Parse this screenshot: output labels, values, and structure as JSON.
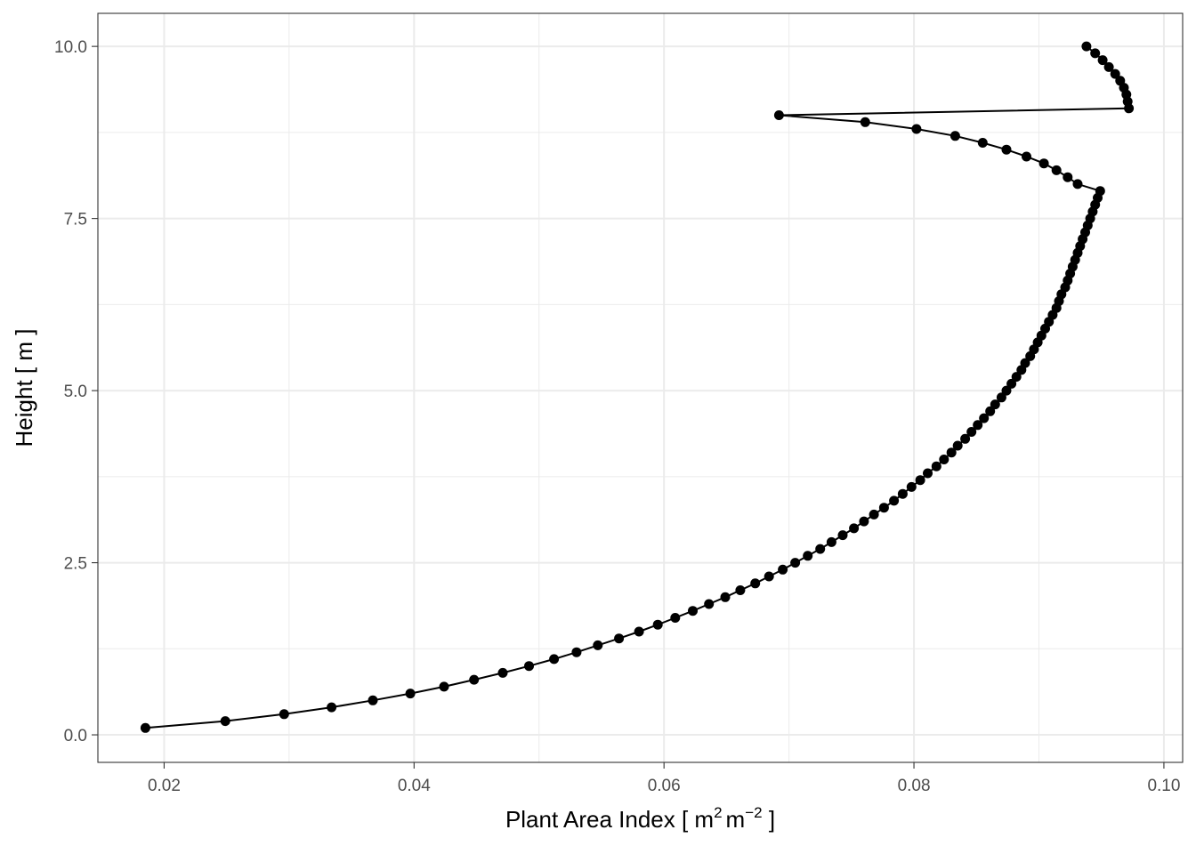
{
  "chart_data": {
    "type": "line",
    "xlabel": "Plant Area Index [  m² m⁻² ]",
    "xlabel_parts": {
      "prefix": "Plant Area Index [  ",
      "m1": "m",
      "sup1": "2",
      "m2": "m",
      "sup2": "−2",
      "suffix": " ]"
    },
    "ylabel": "Height [ m ]",
    "xlim": [
      0.0147,
      0.1015
    ],
    "ylim": [
      -0.4,
      10.48
    ],
    "x_ticks": [
      0.02,
      0.04,
      0.06,
      0.08,
      0.1
    ],
    "x_tick_labels": [
      "0.02",
      "0.04",
      "0.06",
      "0.08",
      "0.10"
    ],
    "y_ticks": [
      0.0,
      2.5,
      5.0,
      7.5,
      10.0
    ],
    "y_tick_labels": [
      "0.0",
      "2.5",
      "5.0",
      "7.5",
      "10.0"
    ],
    "grid": true,
    "series": [
      {
        "color": "#000000",
        "markers": true,
        "x": [
          0.0185,
          0.0249,
          0.0296,
          0.0334,
          0.0367,
          0.0397,
          0.0424,
          0.0448,
          0.0471,
          0.0492,
          0.0512,
          0.053,
          0.0547,
          0.0564,
          0.058,
          0.0595,
          0.0609,
          0.0623,
          0.0636,
          0.0649,
          0.0661,
          0.0673,
          0.0684,
          0.0695,
          0.0705,
          0.0715,
          0.0725,
          0.0734,
          0.0743,
          0.0752,
          0.076,
          0.0768,
          0.0776,
          0.0784,
          0.0791,
          0.0798,
          0.0805,
          0.0811,
          0.0818,
          0.0824,
          0.083,
          0.0835,
          0.0841,
          0.0846,
          0.0851,
          0.0856,
          0.0861,
          0.0865,
          0.087,
          0.0874,
          0.0878,
          0.0882,
          0.0886,
          0.0889,
          0.0893,
          0.0896,
          0.0899,
          0.0902,
          0.0905,
          0.0908,
          0.0911,
          0.0914,
          0.0916,
          0.0918,
          0.0921,
          0.0923,
          0.0925,
          0.0927,
          0.0929,
          0.0931,
          0.0933,
          0.0935,
          0.0937,
          0.0939,
          0.0941,
          0.0943,
          0.0945,
          0.0947,
          0.0949,
          0.0951,
          0.0955,
          0.0959,
          0.0963,
          0.0966,
          0.0968,
          0.097,
          0.0971,
          0.0972,
          0.0972,
          0.0972,
          0.0972,
          0.0971,
          0.097,
          0.0968,
          0.0965,
          0.0961,
          0.0956,
          0.0951,
          0.0945,
          0.0938,
          0.0931,
          0.0923,
          0.0914,
          0.0904,
          0.089,
          0.0874,
          0.0855,
          0.0833,
          0.0802,
          0.0761,
          0.0692
        ],
        "y": [
          0.1,
          0.2,
          0.3,
          0.4,
          0.5,
          0.6,
          0.7,
          0.8,
          0.9,
          1.0,
          1.1,
          1.2,
          1.3,
          1.4,
          1.5,
          1.6,
          1.7,
          1.8,
          1.9,
          2.0,
          2.1,
          2.2,
          2.3,
          2.4,
          2.5,
          2.6,
          2.7,
          2.8,
          2.9,
          3.0,
          3.1,
          3.2,
          3.3,
          3.4,
          3.5,
          3.6,
          3.7,
          3.8,
          3.9,
          4.0,
          4.1,
          4.2,
          4.3,
          4.4,
          4.5,
          4.6,
          4.7,
          4.8,
          4.9,
          5.0,
          5.1,
          5.2,
          5.3,
          5.4,
          5.5,
          5.6,
          5.7,
          5.8,
          5.9,
          6.0,
          6.1,
          6.2,
          6.3,
          6.4,
          6.5,
          6.6,
          6.7,
          6.8,
          6.9,
          7.0,
          7.1,
          7.2,
          7.3,
          7.4,
          7.5,
          7.6,
          7.7,
          7.8,
          7.9,
          8.0,
          8.1,
          8.2,
          8.3,
          8.4,
          8.5,
          8.6,
          8.7,
          8.8,
          8.9,
          9.0,
          9.1,
          9.2,
          9.3,
          9.4,
          9.5,
          9.6,
          9.7,
          9.8,
          9.9,
          10.0,
          8.0,
          8.1,
          8.2,
          8.3,
          8.4,
          8.5,
          8.6,
          8.7,
          8.8,
          8.9,
          9.0
        ]
      }
    ]
  }
}
